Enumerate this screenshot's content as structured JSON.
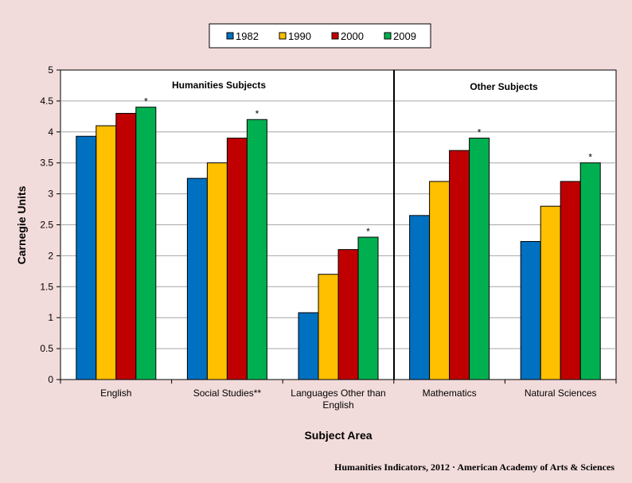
{
  "chart_data": {
    "type": "bar",
    "categories": [
      "English",
      "Social Studies**",
      "Languages Other than English",
      "Mathematics",
      "Natural Sciences"
    ],
    "category_label_lines": [
      [
        "English"
      ],
      [
        "Social Studies**"
      ],
      [
        "Languages Other than",
        "English"
      ],
      [
        "Mathematics"
      ],
      [
        "Natural Sciences"
      ]
    ],
    "series": [
      {
        "name": "1982",
        "color": "#0070c0",
        "values": [
          3.93,
          3.25,
          1.08,
          2.65,
          2.23
        ]
      },
      {
        "name": "1990",
        "color": "#ffc000",
        "values": [
          4.1,
          3.5,
          1.7,
          3.2,
          2.8
        ]
      },
      {
        "name": "2000",
        "color": "#c00000",
        "values": [
          4.3,
          3.9,
          2.1,
          3.7,
          3.2
        ]
      },
      {
        "name": "2009",
        "color": "#00b050",
        "values": [
          4.4,
          4.2,
          2.3,
          3.9,
          3.5
        ]
      }
    ],
    "annotations": [
      "*",
      "*",
      "*",
      "*",
      "*"
    ],
    "group_titles": [
      "Humanities Subjects",
      "Other Subjects"
    ],
    "xlabel": "Subject Area",
    "ylabel": "Carnegie Units",
    "ylim": [
      0,
      5
    ],
    "yticks": [
      0,
      0.5,
      1,
      1.5,
      2,
      2.5,
      3,
      3.5,
      4,
      4.5,
      5
    ],
    "ytick_labels": [
      "0",
      "0.5",
      "1",
      "1.5",
      "2",
      "2.5",
      "3",
      "3.5",
      "4",
      "4.5",
      "5"
    ],
    "grid": true,
    "legend_position": "top-center"
  },
  "footer": "Humanities Indicators, 2012 · American Academy of Arts & Sciences"
}
